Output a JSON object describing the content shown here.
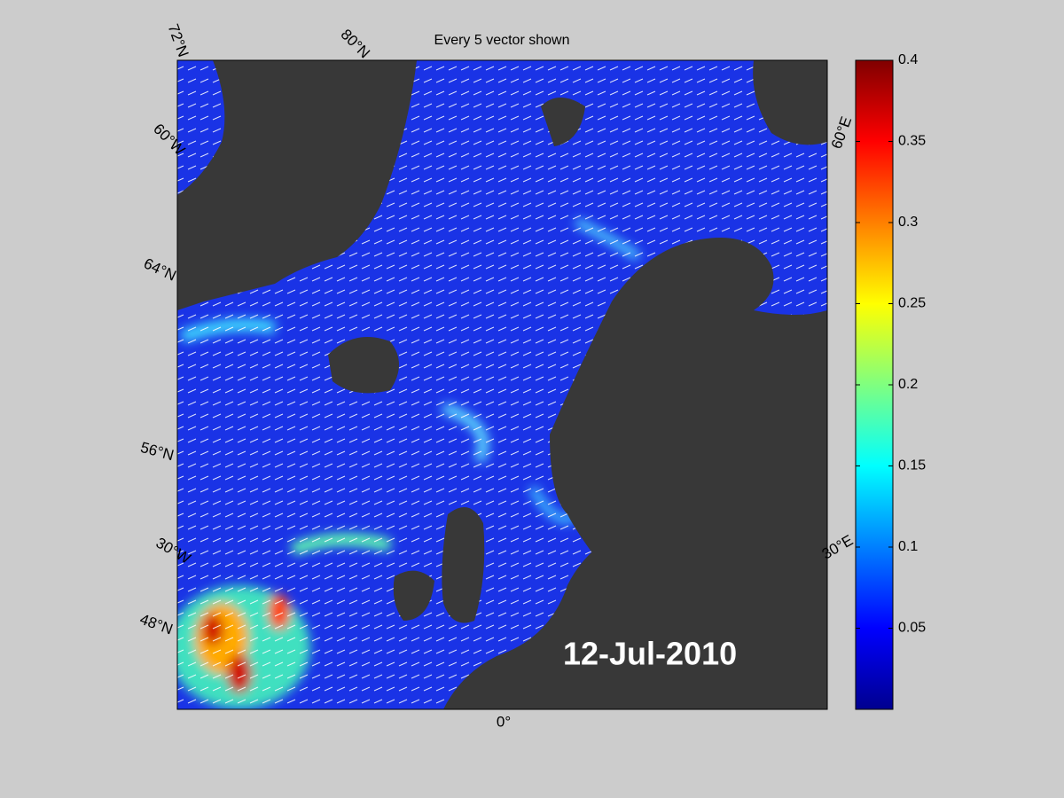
{
  "title": "Every 5 vector shown",
  "date": "12-Jul-2010",
  "graticule_labels": [
    "72°N",
    "80°N",
    "60°W",
    "64°N",
    "56°N",
    "30°W",
    "48°N",
    "60°E",
    "30°E",
    "0°"
  ],
  "colorbar": {
    "colormap": "jet",
    "lim": [
      0,
      0.4
    ],
    "ticks": [
      0.05,
      0.1,
      0.15,
      0.2,
      0.25,
      0.3,
      0.35,
      0.4
    ]
  }
}
